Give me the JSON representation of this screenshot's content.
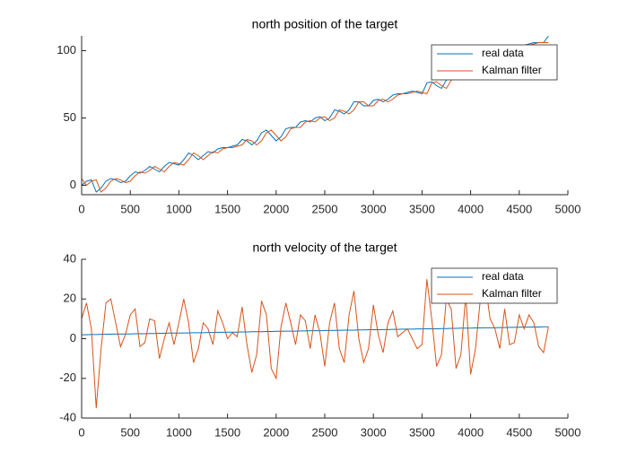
{
  "chart_data": [
    {
      "type": "line",
      "title": "north position of the target",
      "x": [
        0,
        50,
        100,
        150,
        200,
        250,
        300,
        350,
        400,
        450,
        500,
        550,
        600,
        650,
        700,
        750,
        800,
        850,
        900,
        950,
        1000,
        1050,
        1100,
        1150,
        1200,
        1250,
        1300,
        1350,
        1400,
        1450,
        1500,
        1550,
        1600,
        1650,
        1700,
        1750,
        1800,
        1850,
        1900,
        1950,
        2000,
        2050,
        2100,
        2150,
        2200,
        2250,
        2300,
        2350,
        2400,
        2450,
        2500,
        2550,
        2600,
        2650,
        2700,
        2750,
        2800,
        2850,
        2900,
        2950,
        3000,
        3050,
        3100,
        3150,
        3200,
        3250,
        3300,
        3350,
        3400,
        3450,
        3500,
        3550,
        3600,
        3650,
        3700,
        3750,
        3800,
        3850,
        3900,
        3950,
        4000,
        4050,
        4100,
        4150,
        4200,
        4250,
        4300,
        4350,
        4400,
        4450,
        4500,
        4550,
        4600,
        4650,
        4700,
        4750,
        4800
      ],
      "xlim": [
        0,
        5000
      ],
      "xticks": [
        0,
        500,
        1000,
        1500,
        2000,
        2500,
        3000,
        3500,
        4000,
        4500,
        5000
      ],
      "ylim": [
        -7,
        111
      ],
      "yticks": [
        0,
        50,
        100
      ],
      "legend": "northeast",
      "series": [
        {
          "name": "real data",
          "color": "#0072BD",
          "values": [
            0,
            3,
            4,
            -5,
            -2,
            3,
            5,
            4,
            2,
            3,
            7,
            10,
            9,
            11,
            14,
            12,
            10,
            14,
            17,
            16,
            15,
            19,
            24,
            22,
            19,
            22,
            25,
            24,
            27,
            28,
            28,
            29,
            30,
            34,
            33,
            30,
            33,
            39,
            41,
            37,
            33,
            36,
            42,
            43,
            43,
            47,
            48,
            47,
            50,
            51,
            48,
            50,
            56,
            55,
            53,
            56,
            62,
            62,
            59,
            59,
            63,
            64,
            62,
            64,
            67,
            68,
            68,
            69,
            70,
            69,
            68,
            76,
            77,
            74,
            72,
            78,
            82,
            79,
            79,
            85,
            83,
            82,
            89,
            95,
            98,
            99,
            98,
            101,
            102,
            101,
            103,
            104,
            105,
            106,
            106,
            106,
            111
          ]
        },
        {
          "name": "Kalman filter",
          "color": "#D95319",
          "values": [
            5,
            0,
            3,
            4,
            -5,
            -2,
            3,
            5,
            4,
            2,
            3,
            7,
            10,
            9,
            11,
            14,
            12,
            10,
            14,
            17,
            16,
            15,
            19,
            24,
            22,
            19,
            22,
            25,
            24,
            27,
            28,
            28,
            29,
            30,
            34,
            33,
            30,
            33,
            39,
            41,
            37,
            33,
            36,
            42,
            43,
            43,
            47,
            48,
            47,
            50,
            51,
            48,
            50,
            56,
            55,
            53,
            56,
            62,
            62,
            59,
            59,
            63,
            64,
            62,
            64,
            67,
            68,
            68,
            69,
            70,
            69,
            68,
            76,
            77,
            74,
            72,
            78,
            82,
            79,
            79,
            85,
            83,
            82,
            89,
            95,
            98,
            99,
            98,
            101,
            102,
            101,
            103,
            104,
            105,
            106,
            106,
            106
          ]
        }
      ]
    },
    {
      "type": "line",
      "title": "north velocity of the target",
      "x": [
        0,
        50,
        100,
        150,
        200,
        250,
        300,
        350,
        400,
        450,
        500,
        550,
        600,
        650,
        700,
        750,
        800,
        850,
        900,
        950,
        1000,
        1050,
        1100,
        1150,
        1200,
        1250,
        1300,
        1350,
        1400,
        1450,
        1500,
        1550,
        1600,
        1650,
        1700,
        1750,
        1800,
        1850,
        1900,
        1950,
        2000,
        2050,
        2100,
        2150,
        2200,
        2250,
        2300,
        2350,
        2400,
        2450,
        2500,
        2550,
        2600,
        2650,
        2700,
        2750,
        2800,
        2850,
        2900,
        2950,
        3000,
        3050,
        3100,
        3150,
        3200,
        3250,
        3300,
        3350,
        3400,
        3450,
        3500,
        3550,
        3600,
        3650,
        3700,
        3750,
        3800,
        3850,
        3900,
        3950,
        4000,
        4050,
        4100,
        4150,
        4200,
        4250,
        4300,
        4350,
        4400,
        4450,
        4500,
        4550,
        4600,
        4650,
        4700,
        4750,
        4800
      ],
      "xlim": [
        0,
        5000
      ],
      "xticks": [
        0,
        500,
        1000,
        1500,
        2000,
        2500,
        3000,
        3500,
        4000,
        4500,
        5000
      ],
      "ylim": [
        -40,
        40
      ],
      "yticks": [
        -40,
        -20,
        0,
        20,
        40
      ],
      "legend": "northeast",
      "series": [
        {
          "name": "real data",
          "color": "#0072BD",
          "values": [
            2.0,
            2.0,
            2.1,
            2.1,
            2.2,
            2.2,
            2.3,
            2.3,
            2.3,
            2.4,
            2.4,
            2.5,
            2.5,
            2.5,
            2.6,
            2.6,
            2.7,
            2.7,
            2.8,
            2.8,
            2.8,
            2.9,
            2.9,
            3.0,
            3.0,
            3.0,
            3.1,
            3.1,
            3.2,
            3.2,
            3.3,
            3.3,
            3.3,
            3.4,
            3.4,
            3.5,
            3.5,
            3.5,
            3.6,
            3.6,
            3.7,
            3.7,
            3.8,
            3.8,
            3.8,
            3.9,
            3.9,
            4.0,
            4.0,
            4.0,
            4.1,
            4.1,
            4.2,
            4.2,
            4.3,
            4.3,
            4.3,
            4.4,
            4.4,
            4.5,
            4.5,
            4.5,
            4.6,
            4.6,
            4.7,
            4.7,
            4.8,
            4.8,
            4.8,
            4.9,
            4.9,
            5.0,
            5.0,
            5.0,
            5.1,
            5.1,
            5.2,
            5.2,
            5.3,
            5.3,
            5.3,
            5.4,
            5.4,
            5.5,
            5.5,
            5.5,
            5.6,
            5.6,
            5.7,
            5.7,
            5.8,
            5.8,
            5.8,
            5.9,
            5.9,
            6.0,
            6.0
          ]
        },
        {
          "name": "Kalman filter",
          "color": "#D95319",
          "values": [
            10,
            18,
            5,
            -35,
            -5,
            18,
            20,
            8,
            -4,
            2,
            12,
            15,
            -4,
            -2,
            10,
            9,
            -10,
            0,
            8,
            -3,
            8,
            20,
            8,
            -12,
            -5,
            8,
            5,
            -3,
            14,
            8,
            0,
            3,
            1,
            16,
            -3,
            -17,
            -8,
            19,
            12,
            -15,
            -20,
            6,
            18,
            8,
            -3,
            12,
            9,
            -5,
            12,
            3,
            -14,
            8,
            18,
            -5,
            -12,
            12,
            24,
            0,
            -12,
            -5,
            17,
            2,
            -7,
            8,
            14,
            1,
            3,
            5,
            0,
            -5,
            -3,
            30,
            10,
            -14,
            -8,
            20,
            15,
            -15,
            -8,
            22,
            -18,
            -5,
            20,
            28,
            10,
            5,
            -5,
            15,
            -3,
            -2,
            12,
            5,
            12,
            8,
            -4,
            -7,
            6
          ]
        }
      ]
    }
  ]
}
